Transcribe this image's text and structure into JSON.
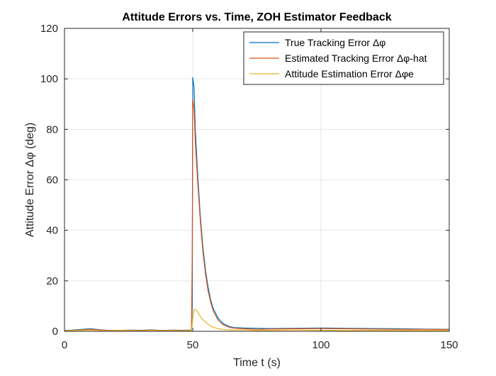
{
  "chart_data": {
    "type": "line",
    "title": "Attitude Errors vs. Time, ZOH Estimator Feedback",
    "xlabel": "Time t (s)",
    "ylabel": "Attitude Error Δφ (deg)",
    "xlim": [
      0,
      150
    ],
    "ylim": [
      0,
      120
    ],
    "xticks": [
      0,
      50,
      100,
      150
    ],
    "yticks": [
      0,
      20,
      40,
      60,
      80,
      100,
      120
    ],
    "xtick_labels": [
      "0",
      "50",
      "100",
      "150"
    ],
    "ytick_labels": [
      "0",
      "20",
      "40",
      "60",
      "80",
      "100",
      "120"
    ],
    "grid": true,
    "legend_location": "top-right",
    "series": [
      {
        "name": "True Tracking Error Δφ",
        "color": "#0072BD",
        "x": [
          0,
          3,
          6,
          10,
          14,
          18,
          22,
          26,
          30,
          34,
          38,
          42,
          46,
          49.5,
          49.8,
          50.0,
          50.5,
          51,
          52,
          53,
          54,
          55,
          56,
          57,
          58,
          60,
          62,
          64,
          66,
          70,
          75,
          80,
          90,
          100,
          110,
          120,
          130,
          140,
          150
        ],
        "y": [
          0.3,
          0.5,
          0.7,
          1.0,
          0.6,
          0.3,
          0.4,
          0.5,
          0.4,
          0.6,
          0.3,
          0.5,
          0.4,
          0.5,
          10,
          100.5,
          97,
          80,
          61,
          45,
          33,
          24,
          17.5,
          12.5,
          9,
          5,
          3,
          2,
          1.5,
          1.3,
          1.2,
          1.1,
          1.2,
          1.3,
          1.2,
          1.1,
          1.0,
          0.9,
          0.8
        ]
      },
      {
        "name": "Estimated Tracking Error Δφ-hat",
        "color": "#D95319",
        "x": [
          0,
          3,
          6,
          10,
          14,
          18,
          22,
          26,
          30,
          34,
          38,
          42,
          46,
          49.5,
          49.8,
          50.0,
          50.5,
          51,
          52,
          53,
          54,
          55,
          56,
          57,
          58,
          60,
          62,
          64,
          66,
          70,
          75,
          80,
          90,
          100,
          110,
          120,
          130,
          140,
          150
        ],
        "y": [
          0.2,
          0.4,
          0.5,
          0.8,
          0.5,
          0.3,
          0.3,
          0.4,
          0.3,
          0.5,
          0.3,
          0.4,
          0.3,
          0.3,
          30,
          92,
          88,
          75,
          58,
          43,
          31,
          22.5,
          16,
          11.5,
          8,
          4.2,
          2.5,
          1.7,
          1.2,
          1.0,
          0.8,
          0.9,
          1.0,
          1.1,
          1.0,
          0.9,
          0.8,
          0.8,
          0.7
        ]
      },
      {
        "name": "Attitude Estimation Error Δφe",
        "color": "#EDB120",
        "x": [
          0,
          3,
          6,
          10,
          14,
          18,
          22,
          26,
          30,
          34,
          38,
          42,
          46,
          49.5,
          50.0,
          50.5,
          51,
          51.5,
          52,
          53,
          54,
          55,
          56,
          57,
          58,
          60,
          62,
          64,
          66,
          70,
          75,
          80,
          90,
          100,
          110,
          120,
          130,
          140,
          150
        ],
        "y": [
          0.2,
          0.3,
          0.4,
          0.5,
          0.3,
          0.2,
          0.3,
          0.3,
          0.2,
          0.4,
          0.2,
          0.3,
          0.2,
          0.3,
          5,
          8.5,
          8.8,
          8.4,
          7.5,
          5.8,
          4.6,
          3.6,
          2.8,
          2.1,
          1.6,
          1.0,
          0.7,
          0.6,
          0.5,
          0.5,
          0.4,
          0.4,
          0.5,
          0.4,
          0.3,
          0.4,
          0.3,
          0.3,
          0.3
        ]
      }
    ]
  }
}
